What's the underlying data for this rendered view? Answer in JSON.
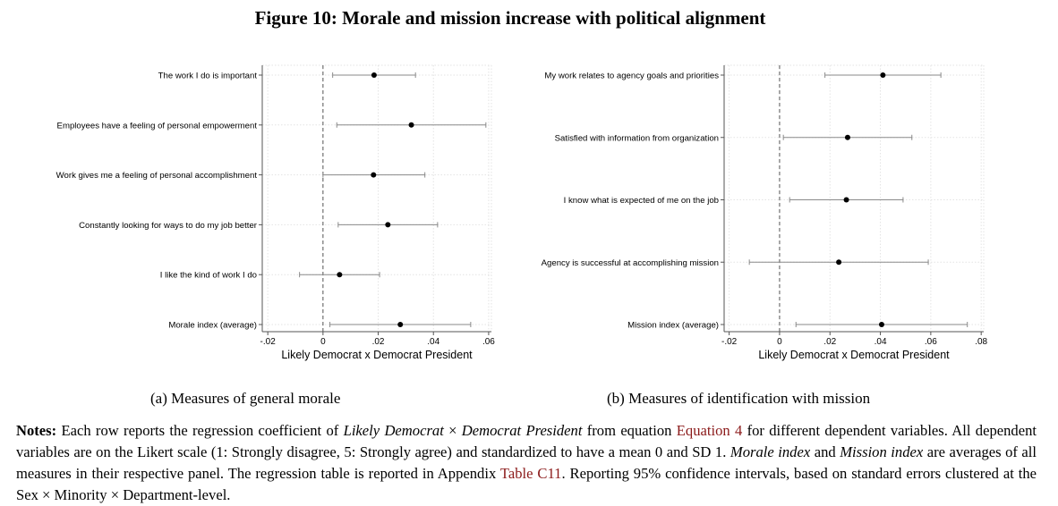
{
  "figure": {
    "title": "Figure 10: Morale and mission increase with political alignment"
  },
  "chart_data": [
    {
      "type": "scatter",
      "subtype": "coefficient-plot-with-95ci",
      "caption": "(a) Measures of general morale",
      "xlabel": "Likely Democrat x Democrat President",
      "xlim": [
        -0.022,
        0.061
      ],
      "xticks": [
        -0.02,
        0,
        0.02,
        0.04,
        0.06
      ],
      "xtick_labels": [
        "-.02",
        "0",
        ".02",
        ".04",
        ".06"
      ],
      "reference_line_x": 0,
      "grid": true,
      "rows": [
        {
          "label": "The work I do is important",
          "estimate": 0.0185,
          "ci_low": 0.0035,
          "ci_high": 0.0335
        },
        {
          "label": "Employees have a feeling of personal empowerment",
          "estimate": 0.032,
          "ci_low": 0.005,
          "ci_high": 0.059
        },
        {
          "label": "Work gives me a feeling of personal accomplishment",
          "estimate": 0.0183,
          "ci_low": 0.0,
          "ci_high": 0.0369
        },
        {
          "label": "Constantly looking for ways to do my job better",
          "estimate": 0.0235,
          "ci_low": 0.0055,
          "ci_high": 0.0415
        },
        {
          "label": "I like the kind of work I do",
          "estimate": 0.006,
          "ci_low": -0.0085,
          "ci_high": 0.0205
        },
        {
          "label": "Morale index (average)",
          "estimate": 0.028,
          "ci_low": 0.0025,
          "ci_high": 0.0535
        }
      ]
    },
    {
      "type": "scatter",
      "subtype": "coefficient-plot-with-95ci",
      "caption": "(b) Measures of identification with mission",
      "xlabel": "Likely Democrat x Democrat President",
      "xlim": [
        -0.022,
        0.081
      ],
      "xticks": [
        -0.02,
        0,
        0.02,
        0.04,
        0.06,
        0.08
      ],
      "xtick_labels": [
        "-.02",
        "0",
        ".02",
        ".04",
        ".06",
        ".08"
      ],
      "reference_line_x": 0,
      "grid": true,
      "rows": [
        {
          "label": "My work relates to agency goals and priorities",
          "estimate": 0.041,
          "ci_low": 0.018,
          "ci_high": 0.064
        },
        {
          "label": "Satisfied with information from organization",
          "estimate": 0.027,
          "ci_low": 0.0015,
          "ci_high": 0.0525
        },
        {
          "label": "I know what is expected of me on the job",
          "estimate": 0.0265,
          "ci_low": 0.004,
          "ci_high": 0.049
        },
        {
          "label": "Agency is successful at accomplishing mission",
          "estimate": 0.0235,
          "ci_low": -0.012,
          "ci_high": 0.059
        },
        {
          "label": "Mission index (average)",
          "estimate": 0.0405,
          "ci_low": 0.0065,
          "ci_high": 0.0745
        }
      ]
    }
  ],
  "notes": {
    "lead": "Notes:",
    "t1": " Each row reports the regression coefficient of ",
    "em1": "Likely Democrat",
    "t2": " × ",
    "em2": "Democrat President",
    "t3": " from equation ",
    "ref1": "Equation 4",
    "t4": " for different dependent variables. All dependent variables are on the Likert scale (1: Strongly disagree, 5: Strongly agree) and standardized to have a mean 0 and SD 1. ",
    "em3": "Morale index",
    "t5": " and ",
    "em4": "Mission index",
    "t6": " are averages of all measures in their respective panel. The regression table is reported in Appendix ",
    "ref2": "Table C11",
    "t7": ". Reporting 95% confidence intervals, based on standard errors clustered at the Sex × Minority × Department-level."
  }
}
